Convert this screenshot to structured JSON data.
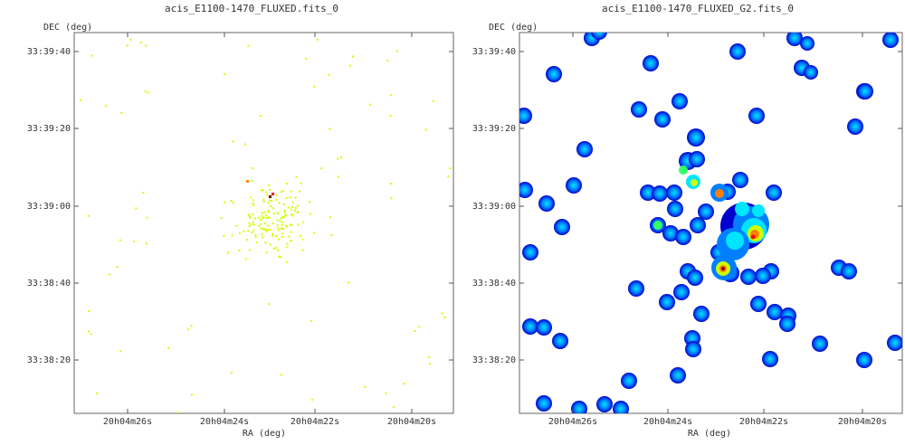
{
  "chart_data": [
    {
      "type": "image",
      "title": "acis_E1100-1470_FLUXED.fits_0",
      "xlabel": "RA (deg)",
      "ylabel": "DEC (deg)",
      "x_ticks": [
        "20h04m26s",
        "20h04m24s",
        "20h04m22s",
        "20h04m20s"
      ],
      "y_ticks": [
        "33:39:40",
        "33:39:20",
        "33:39:00",
        "33:38:40",
        "33:38:20"
      ],
      "colormap": [
        "#0000aa",
        "#0066ff",
        "#00ccff",
        "#33ff99",
        "#ccff00",
        "#ffff00",
        "#ff8800",
        "#ff0000",
        "#880000"
      ],
      "cluster_center": {
        "x": 0.52,
        "y": 0.49
      },
      "note": "sparse single-pixel X-ray event map"
    },
    {
      "type": "image",
      "title": "acis_E1100-1470_FLUXED_G2.fits_0",
      "xlabel": "RA (deg)",
      "ylabel": "DEC (deg)",
      "x_ticks": [
        "20h04m26s",
        "20h04m24s",
        "20h04m22s",
        "20h04m20s"
      ],
      "y_ticks": [
        "33:39:40",
        "33:39:20",
        "33:39:00",
        "33:38:40",
        "33:38:20"
      ],
      "colormap": [
        "#0000cc",
        "#0080ff",
        "#00e5ff",
        "#33ff66",
        "#ccff00",
        "#ffee00",
        "#ff8000",
        "#ff0000",
        "#800000"
      ],
      "note": "gaussian-smoothed (sigma 2) map"
    }
  ]
}
